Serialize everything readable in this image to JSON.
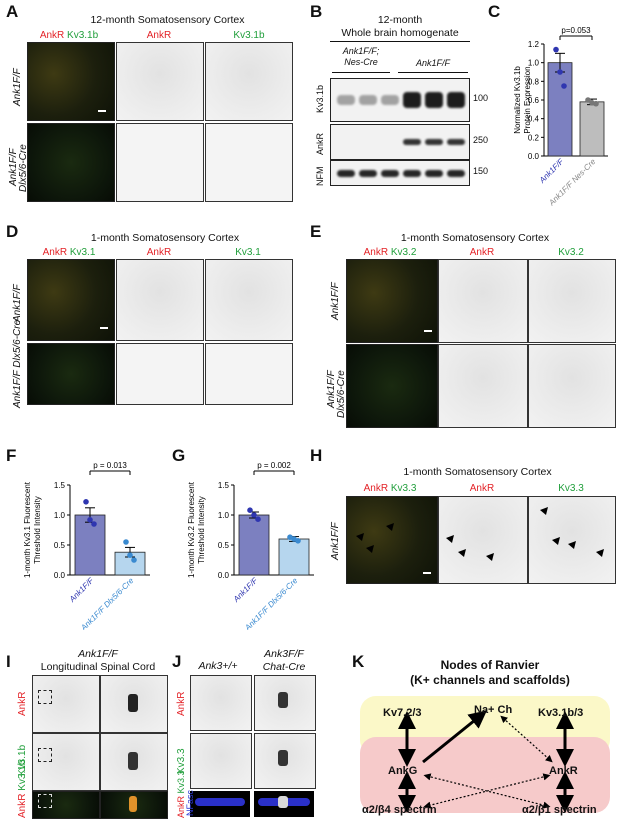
{
  "panelA": {
    "letter": "A",
    "title": "12-month Somatosensory Cortex",
    "chan1a": "AnkR",
    "chan1b": "Kv3.1b",
    "chan2": "AnkR",
    "chan3": "Kv3.1b",
    "row1": "Ank1F/F",
    "row2a": "Ank1F/F",
    "row2b": "Dlx5/6-Cre"
  },
  "panelB": {
    "letter": "B",
    "title1": "12-month",
    "title2": "Whole brain homogenate",
    "group1a": "Ank1F/F;",
    "group1b": "Nes-Cre",
    "group2": "Ank1F/F",
    "blots": [
      {
        "label": "Kv3.1b",
        "mw": "100"
      },
      {
        "label": "AnkR",
        "mw": "250"
      },
      {
        "label": "NFM",
        "mw": "150"
      }
    ]
  },
  "panelC": {
    "letter": "C",
    "pval": "p=0.053",
    "ylabel1": "Normalized Kv3.1b",
    "ylabel2": "Protein Expression",
    "chart_data": {
      "type": "bar",
      "categories": [
        "Ank1F/F",
        "Ank1F/F Nes-Cre"
      ],
      "values": [
        1.0,
        0.58
      ],
      "errors": [
        0.1,
        0.03
      ],
      "points": [
        [
          1.14,
          0.9,
          0.75
        ],
        [
          0.6,
          0.57,
          0.56
        ]
      ],
      "ylim": [
        0,
        1.2
      ],
      "yticks": [
        "0.0",
        "0.2",
        "0.4",
        "0.6",
        "0.8",
        "1.0",
        "1.2"
      ],
      "colors": [
        "#7c80c0",
        "#bdbdbd"
      ]
    }
  },
  "panelD": {
    "letter": "D",
    "title": "1-month Somatosensory Cortex",
    "chan1a": "AnkR",
    "chan1b": "Kv3.1",
    "chan2": "AnkR",
    "chan3": "Kv3.1",
    "row1": "Ank1F/F",
    "row2": "Ank1F/F Dlx5/6-Cre"
  },
  "panelE": {
    "letter": "E",
    "title": "1-month Somatosensory Cortex",
    "chan1a": "AnkR",
    "chan1b": "Kv3.2",
    "chan2": "AnkR",
    "chan3": "Kv3.2",
    "row1": "Ank1F/F",
    "row2a": "Ank1F/F",
    "row2b": "Dlx5/6-Cre"
  },
  "panelF": {
    "letter": "F",
    "pval": "p = 0.013",
    "ylabel1": "1-month Kv3.1 Fluorescent",
    "ylabel2": "Threshold Intensity",
    "chart_data": {
      "type": "bar",
      "categories": [
        "Ank1F/F",
        "Ank1F/F Dlx5/6-Cre"
      ],
      "values": [
        1.0,
        0.38
      ],
      "errors": [
        0.12,
        0.08
      ],
      "points": [
        [
          1.22,
          0.92,
          0.85
        ],
        [
          0.55,
          0.33,
          0.25
        ]
      ],
      "ylim": [
        0,
        1.5
      ],
      "yticks": [
        "0.0",
        "0.5",
        "1.0",
        "1.5"
      ],
      "colors": [
        "#7c80c0",
        "#b6d6ee"
      ]
    }
  },
  "panelG": {
    "letter": "G",
    "pval": "p = 0.002",
    "ylabel1": "1-month Kv3.2 Fluorescent",
    "ylabel2": "Threshold Intensity",
    "chart_data": {
      "type": "bar",
      "categories": [
        "Ank1F/F",
        "Ank1F/F Dlx5/6-Cre"
      ],
      "values": [
        1.0,
        0.6
      ],
      "errors": [
        0.05,
        0.04
      ],
      "points": [
        [
          1.08,
          1.0,
          0.93
        ],
        [
          0.63,
          0.6,
          0.57
        ]
      ],
      "ylim": [
        0,
        1.5
      ],
      "yticks": [
        "0.0",
        "0.5",
        "1.0",
        "1.5"
      ],
      "colors": [
        "#7c80c0",
        "#b6d6ee"
      ]
    }
  },
  "panelH": {
    "letter": "H",
    "title": "1-month Somatosensory Cortex",
    "chan1a": "AnkR",
    "chan1b": "Kv3.3",
    "chan2": "AnkR",
    "chan3": "Kv3.3",
    "row1": "Ank1F/F"
  },
  "panelI": {
    "letter": "I",
    "title1": "Ank1F/F",
    "title2": "Longitudinal Spinal Cord",
    "row1": "AnkR",
    "row2": "Kv3.1b",
    "row3a": "AnkR",
    "row3b": "Kv3.1b"
  },
  "panelJ": {
    "letter": "J",
    "col1": "Ank3+/+",
    "col2a": "Ank3F/F",
    "col2b": "Chat-Cre",
    "row1": "AnkR",
    "row2": "Kv3.3",
    "row3a": "AnkR",
    "row3b": "Kv3.3",
    "row3c": "NFasc"
  },
  "panelK": {
    "letter": "K",
    "title1": "Nodes of Ranvier",
    "title2": "(K+ channels and scaffolds)",
    "nodes": {
      "kv72": "Kv7.2/3",
      "nach": "Na+ Ch",
      "kv31": "Kv3.1b/3",
      "ankg": "AnkG",
      "ankr": "AnkR",
      "a2b4": "α2/β4 spectrin",
      "a2b1": "α2/β1 spectrin"
    },
    "colors": {
      "top": "#fbf8c8",
      "bottom": "#f6caca"
    }
  }
}
